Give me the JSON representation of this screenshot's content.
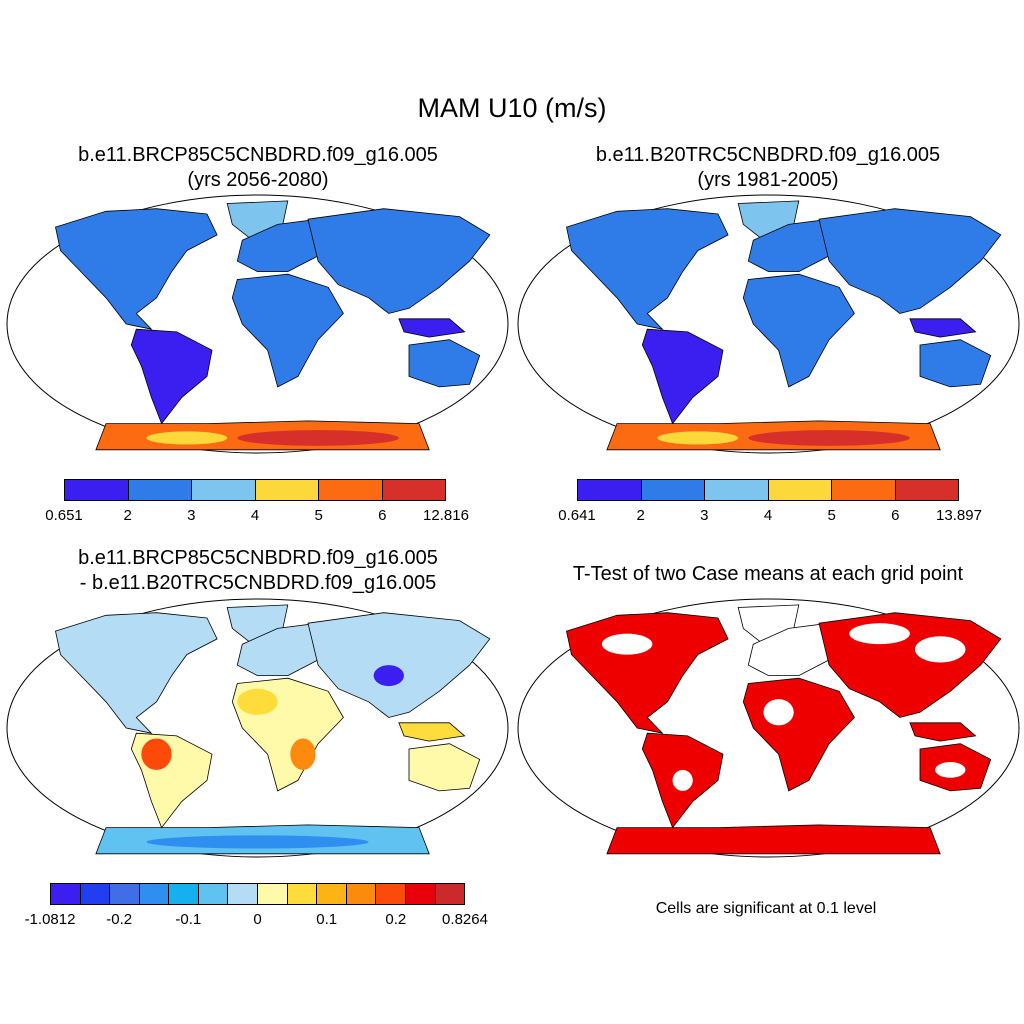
{
  "title": "MAM U10 (m/s)",
  "panels": [
    {
      "title_line1": "b.e11.BRCP85C5CNBDRD.f09_g16.005",
      "title_line2": "(yrs 2056-2080)",
      "map_style": "field",
      "colorbar": {
        "colors": [
          "#3a1ff0",
          "#2f7ce8",
          "#7dc4ee",
          "#fdd83a",
          "#fc6a12",
          "#d7302b"
        ],
        "labels": [
          "0.651",
          "2",
          "3",
          "4",
          "5",
          "6",
          "12.816"
        ]
      }
    },
    {
      "title_line1": "b.e11.B20TRC5CNBDRD.f09_g16.005",
      "title_line2": "(yrs 1981-2005)",
      "map_style": "field",
      "colorbar": {
        "colors": [
          "#3a1ff0",
          "#2f7ce8",
          "#7dc4ee",
          "#fdd83a",
          "#fc6a12",
          "#d7302b"
        ],
        "labels": [
          "0.641",
          "2",
          "3",
          "4",
          "5",
          "6",
          "13.897"
        ]
      }
    },
    {
      "title_line1": "b.e11.BRCP85C5CNBDRD.f09_g16.005",
      "title_line2": "- b.e11.B20TRC5CNBDRD.f09_g16.005",
      "map_style": "diff",
      "colorbar": {
        "colors": [
          "#3a1ff0",
          "#1f3ff0",
          "#3f6ee6",
          "#2f8ff0",
          "#14b0f0",
          "#5fc2f0",
          "#b4dcf5",
          "#fffaaa",
          "#fddc3c",
          "#fcb414",
          "#fc8a0c",
          "#fc4a0a",
          "#e8000a",
          "#cc2a2a"
        ],
        "labels": [
          "-1.0812",
          "-0.2",
          "-0.1",
          "0",
          "0.1",
          "0.2",
          "0.8264"
        ]
      }
    },
    {
      "title_line1": "T-Test of two Case means at each grid point",
      "note": "Cells are significant at 0.1 level",
      "map_style": "ttest",
      "significant_color": "#ee0000"
    }
  ]
}
